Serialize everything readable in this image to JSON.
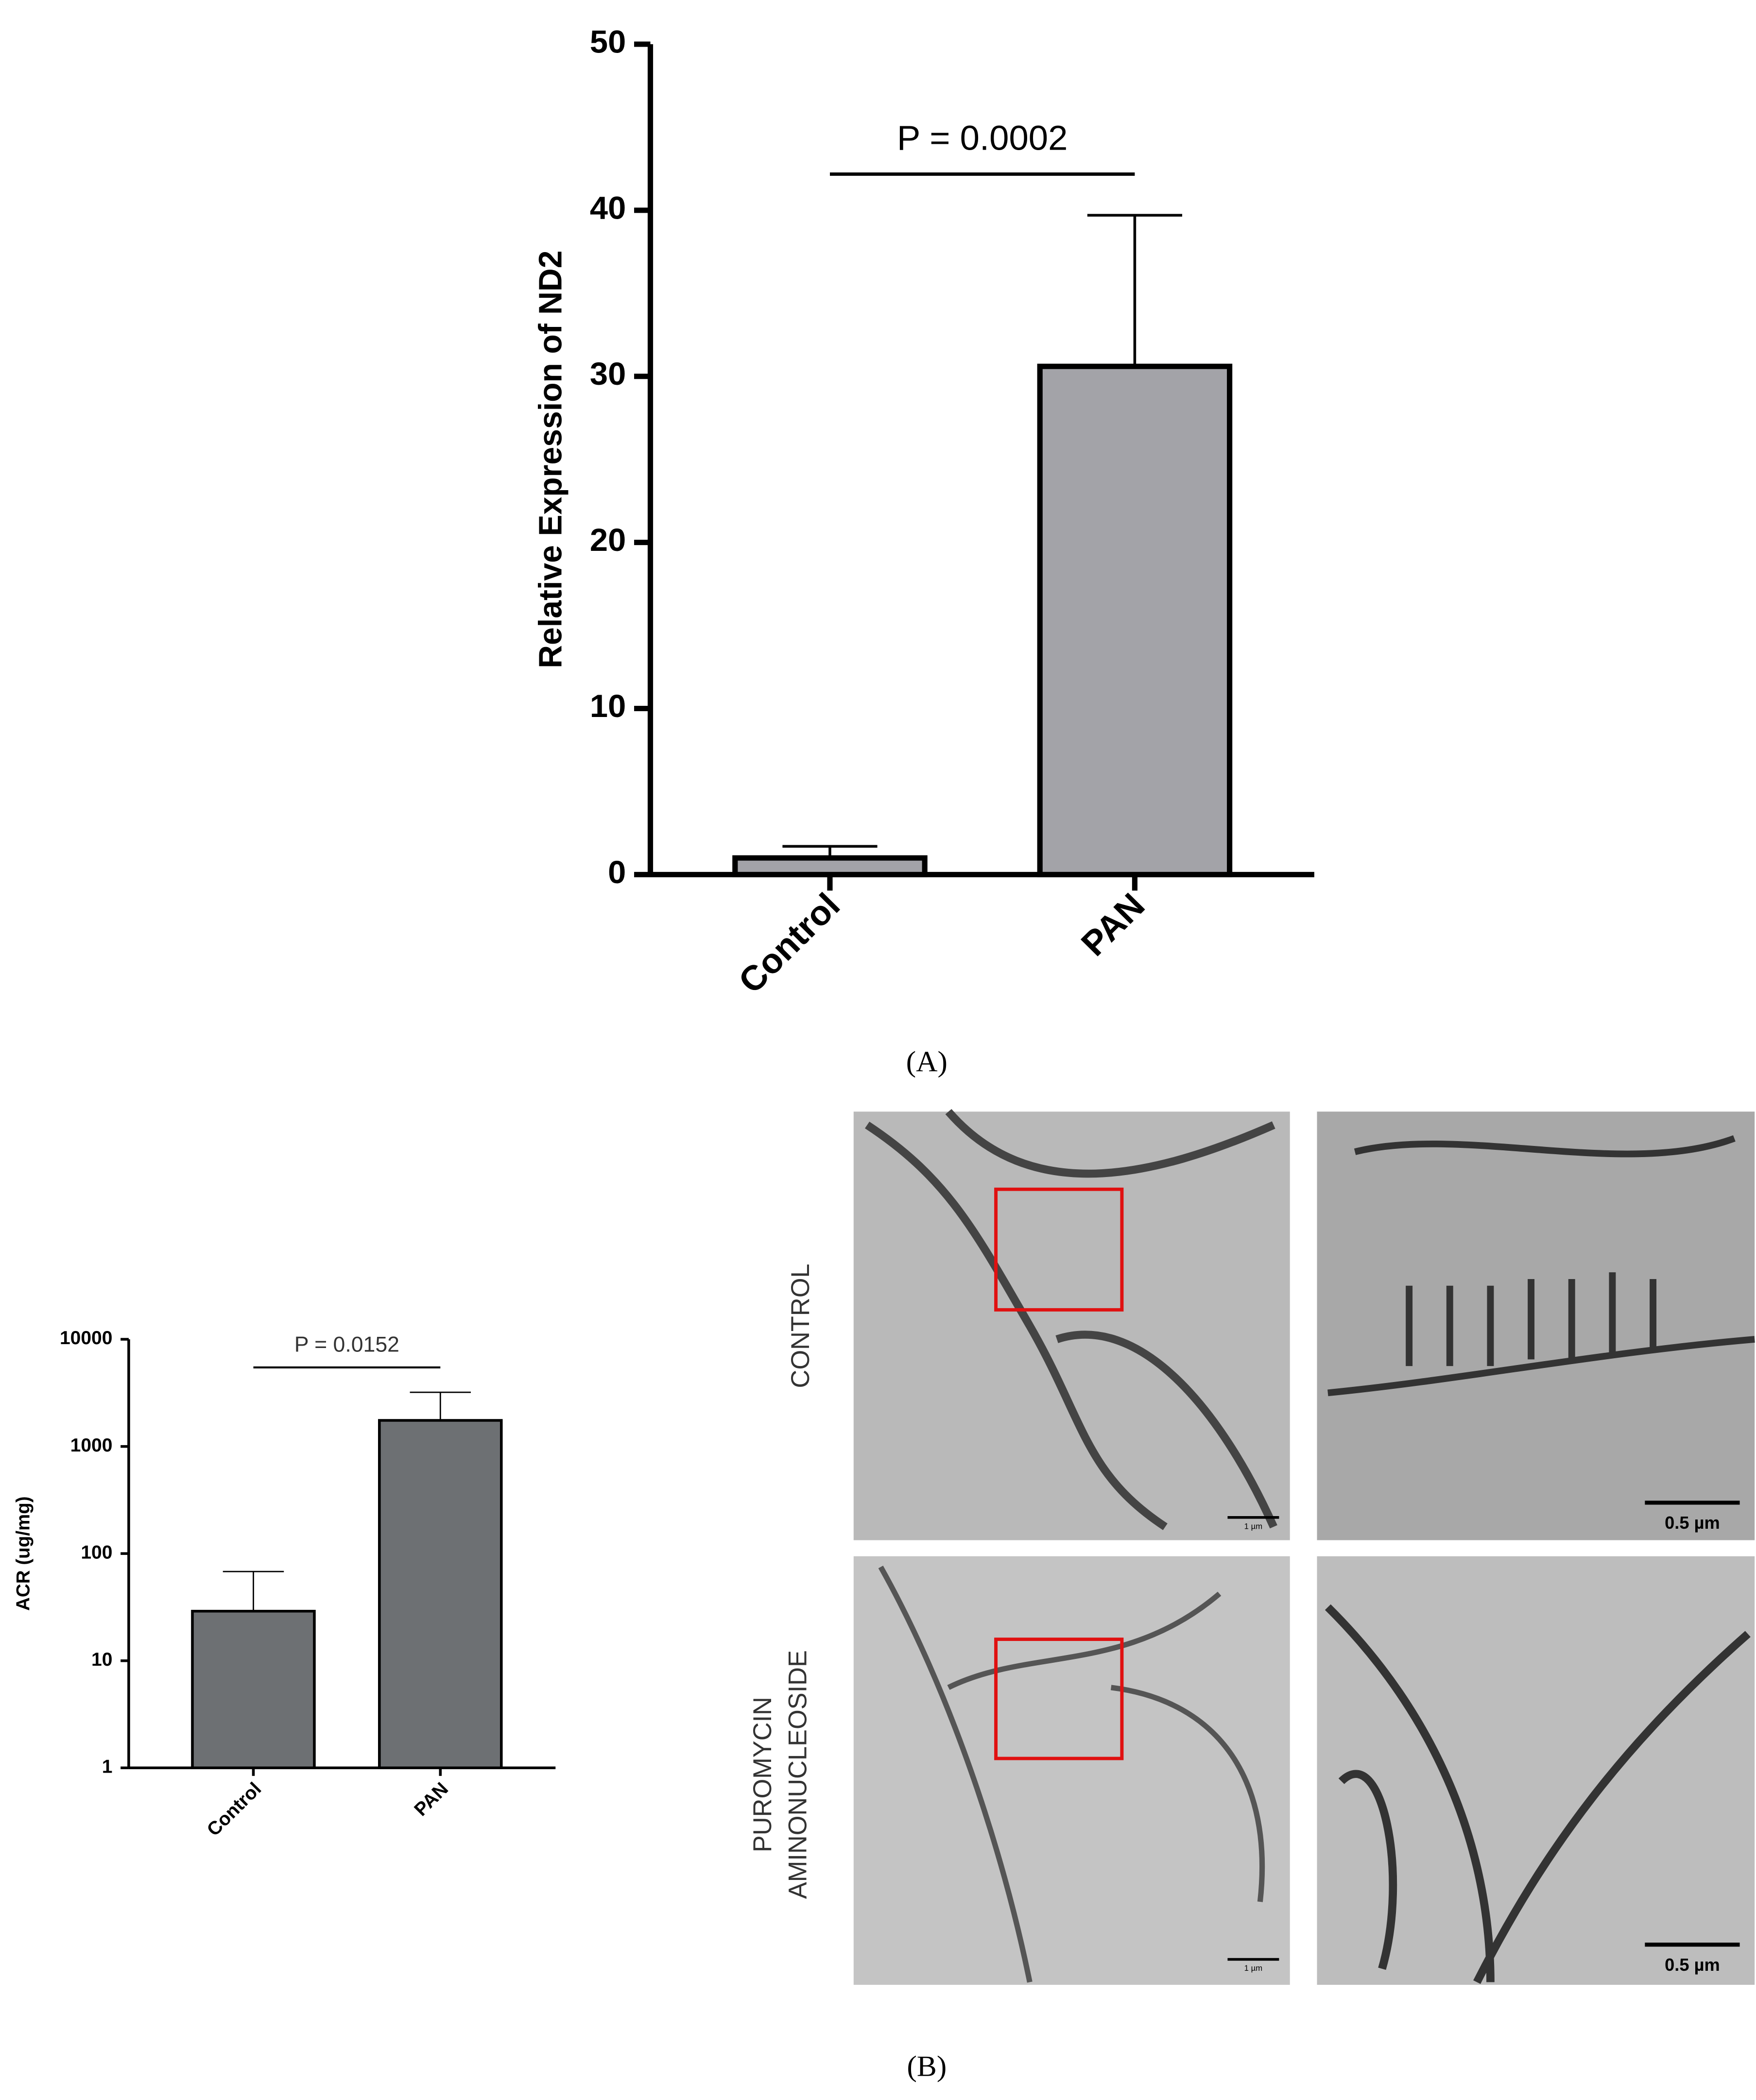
{
  "chart_data": [
    {
      "type": "bar",
      "categories": [
        "Control",
        "PAN"
      ],
      "values": [
        1.0,
        30.6
      ],
      "errors": [
        0.7,
        9.1
      ],
      "color": "#a3a3a8",
      "y_label": "Relative Expression of ND2",
      "annotation": "P = 0.0002",
      "ylim": [
        0,
        50
      ],
      "yticks": [
        0,
        10,
        20,
        30,
        40,
        50
      ],
      "log": false
    },
    {
      "type": "bar",
      "categories": [
        "Control",
        "PAN"
      ],
      "values": [
        29,
        1750
      ],
      "errors": [
        39,
        1450
      ],
      "color": "#6d7073",
      "y_label": "ACR (ug/mg)",
      "annotation": "P = 0.0152",
      "ylim": [
        1,
        10000
      ],
      "yticks": [
        1,
        10,
        100,
        1000,
        10000
      ],
      "log": true
    }
  ],
  "figure": {
    "panel_labels": [
      "(A)",
      "(B)"
    ],
    "micrographs": {
      "row_labels": [
        [
          "CONTROL"
        ],
        [
          "PUROMYCIN",
          "AMINONUCLEOSIDE"
        ]
      ],
      "scale_bars": [
        "1 µm",
        "0.5 µm",
        "1 µm",
        "0.5 µm"
      ]
    }
  }
}
